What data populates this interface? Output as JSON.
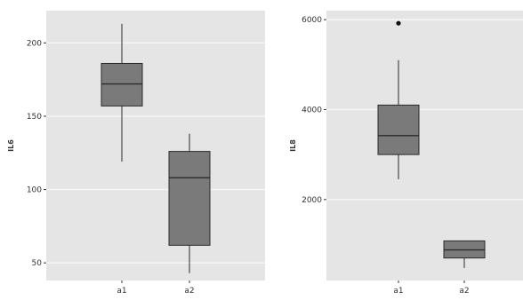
{
  "colors": {
    "panel_bg": "#e5e5e5",
    "grid": "#f7f7f7",
    "box_fill": "#7a7a7a",
    "box_stroke": "#2b2b2b"
  },
  "chart_data": [
    {
      "type": "boxplot",
      "ylabel": "IL6",
      "xlabel": "",
      "categories": [
        "a1",
        "a2"
      ],
      "ylim": [
        38,
        222
      ],
      "yticks": [
        {
          "value": 50,
          "label": "50"
        },
        {
          "value": 100,
          "label": "100"
        },
        {
          "value": 150,
          "label": "150"
        },
        {
          "value": 200,
          "label": "200"
        }
      ],
      "boxes": [
        {
          "category": "a1",
          "min": 119,
          "q1": 157,
          "median": 172,
          "q3": 186,
          "max": 213,
          "outliers": []
        },
        {
          "category": "a2",
          "min": 43,
          "q1": 62,
          "median": 108,
          "q3": 126,
          "max": 138,
          "outliers": []
        }
      ],
      "grid": true
    },
    {
      "type": "boxplot",
      "ylabel": "IL8",
      "xlabel": "",
      "categories": [
        "a1",
        "a2"
      ],
      "ylim": [
        200,
        6200
      ],
      "yticks": [
        {
          "value": 2000,
          "label": "2000"
        },
        {
          "value": 4000,
          "label": "4000"
        },
        {
          "value": 6000,
          "label": "6000"
        }
      ],
      "boxes": [
        {
          "category": "a1",
          "min": 2450,
          "q1": 3000,
          "median": 3420,
          "q3": 4100,
          "max": 5100,
          "outliers": [
            5920
          ]
        },
        {
          "category": "a2",
          "min": 480,
          "q1": 700,
          "median": 880,
          "q3": 1080,
          "max": 1080,
          "outliers": []
        }
      ],
      "grid": true
    }
  ]
}
